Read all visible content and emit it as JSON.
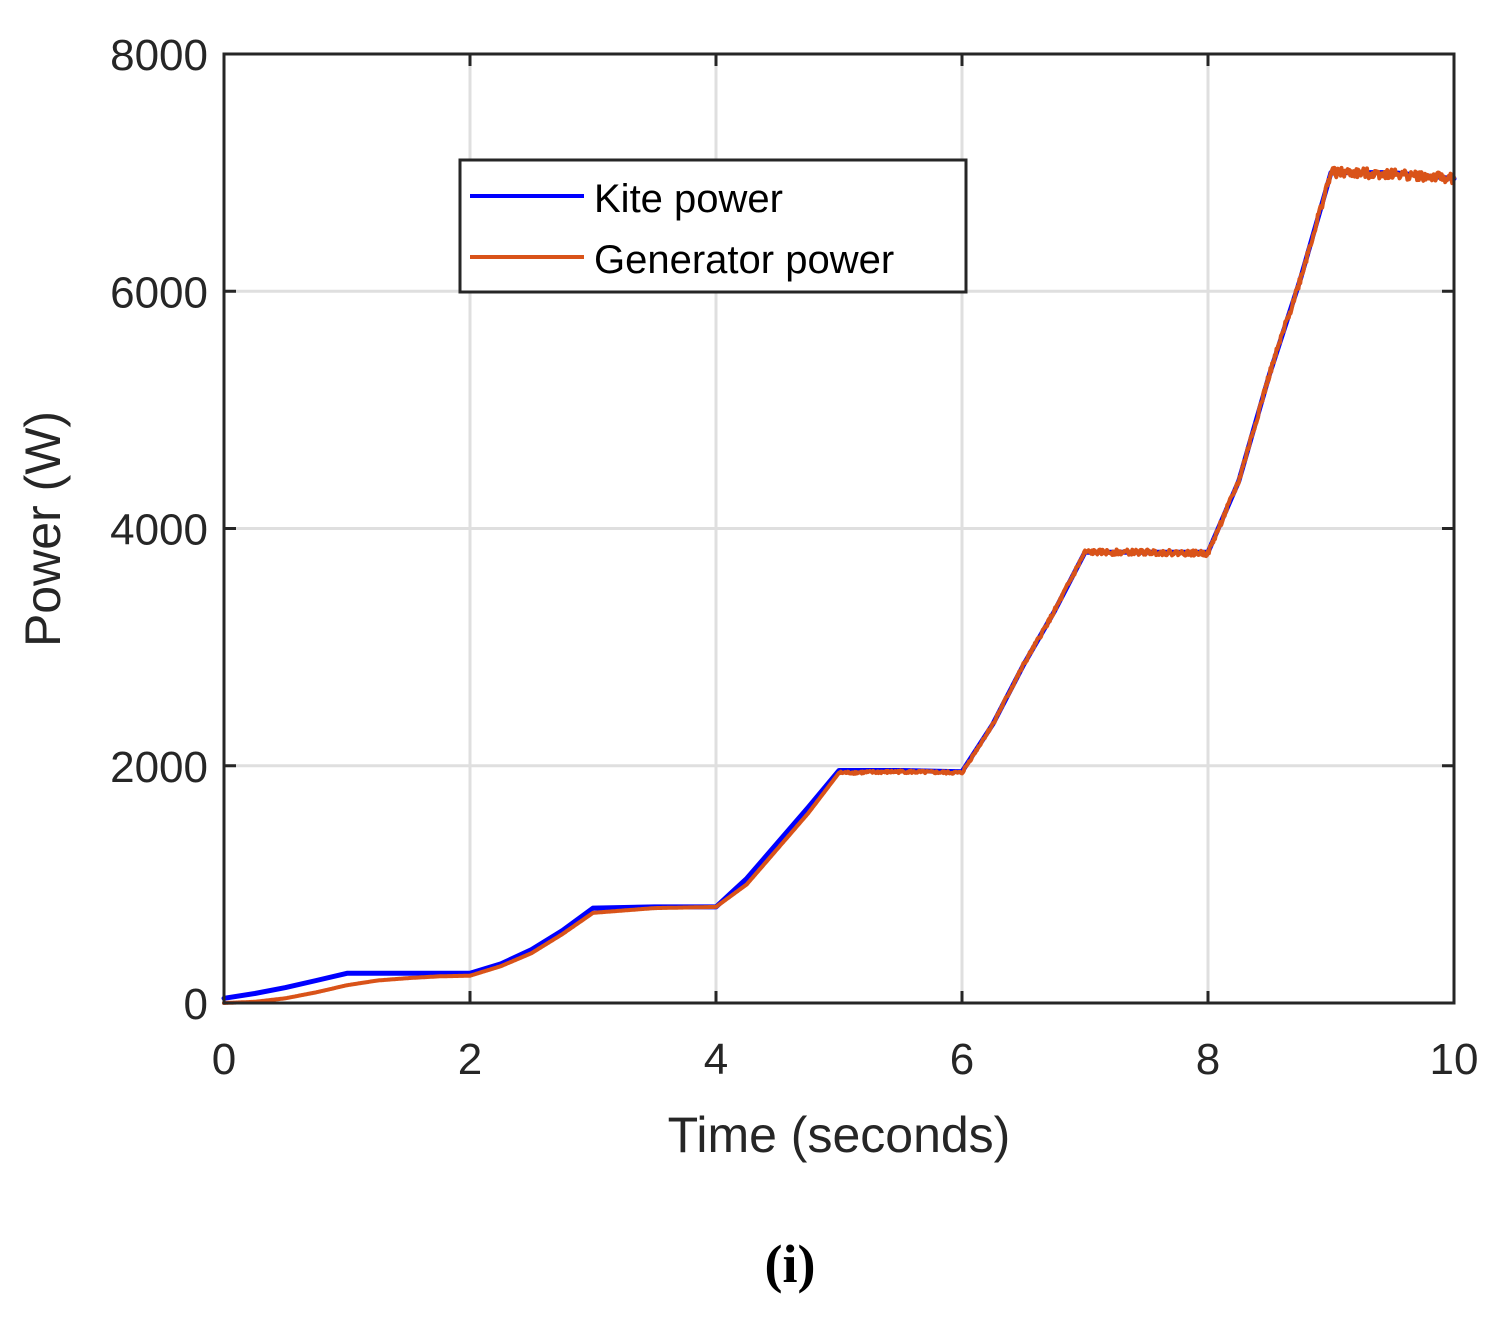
{
  "chart_data": {
    "type": "line",
    "title": "",
    "xlabel": "Time (seconds)",
    "ylabel": "Power (W)",
    "xlim": [
      0,
      10
    ],
    "ylim": [
      0,
      8000
    ],
    "xticks": [
      0,
      2,
      4,
      6,
      8,
      10
    ],
    "yticks": [
      0,
      2000,
      4000,
      6000,
      8000
    ],
    "grid": true,
    "legend_position": "top-center",
    "panel_label": "(i)",
    "series": [
      {
        "name": "Kite power",
        "color": "#0000ff",
        "x": [
          0,
          0.25,
          0.5,
          0.75,
          1.0,
          1.5,
          2.0,
          2.25,
          2.5,
          2.75,
          3.0,
          3.5,
          4.0,
          4.25,
          4.5,
          4.75,
          5.0,
          5.5,
          6.0,
          6.25,
          6.5,
          6.75,
          7.0,
          7.5,
          8.0,
          8.25,
          8.5,
          8.75,
          9.0,
          9.5,
          10.0
        ],
        "y": [
          40,
          80,
          130,
          190,
          250,
          250,
          250,
          330,
          450,
          610,
          800,
          810,
          810,
          1050,
          1350,
          1650,
          1960,
          1960,
          1950,
          2350,
          2850,
          3300,
          3800,
          3800,
          3800,
          4400,
          5300,
          6100,
          7000,
          7000,
          6950
        ]
      },
      {
        "name": "Generator power",
        "color": "#d95319",
        "x": [
          0,
          0.25,
          0.5,
          0.75,
          1.0,
          1.25,
          1.5,
          1.75,
          2.0,
          2.25,
          2.5,
          2.75,
          3.0,
          3.5,
          4.0,
          4.25,
          4.5,
          4.75,
          5.0,
          5.5,
          6.0,
          6.25,
          6.5,
          6.75,
          7.0,
          7.5,
          8.0,
          8.25,
          8.5,
          8.75,
          9.0,
          9.5,
          10.0
        ],
        "y": [
          0,
          10,
          40,
          90,
          150,
          190,
          210,
          225,
          230,
          310,
          420,
          580,
          760,
          800,
          810,
          1000,
          1300,
          1600,
          1940,
          1950,
          1940,
          2350,
          2850,
          3300,
          3800,
          3800,
          3790,
          4400,
          5300,
          6100,
          7000,
          6990,
          6950
        ],
        "noisy_after": 5.0
      }
    ]
  }
}
